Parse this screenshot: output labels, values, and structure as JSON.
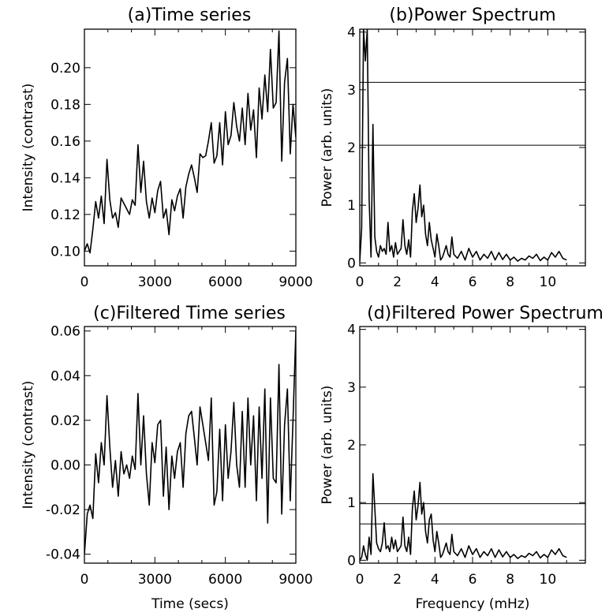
{
  "chart_data": [
    {
      "type": "line",
      "title": "(a)Time series",
      "xlabel": "",
      "ylabel": "Intensity (contrast)",
      "xlim": [
        0,
        9000
      ],
      "ylim": [
        0.092,
        0.221
      ],
      "xticks": [
        "0",
        "3000",
        "6000",
        "9000"
      ],
      "yticks": [
        "0.10",
        "0.12",
        "0.14",
        "0.16",
        "0.18",
        "0.20"
      ],
      "series": [
        {
          "x": [
            0,
            120,
            240,
            360,
            480,
            600,
            720,
            840,
            960,
            1080,
            1200,
            1320,
            1440,
            1560,
            1680,
            1800,
            1920,
            2040,
            2160,
            2280,
            2400,
            2520,
            2640,
            2760,
            2880,
            3000,
            3120,
            3240,
            3360,
            3480,
            3600,
            3720,
            3840,
            3960,
            4080,
            4200,
            4320,
            4440,
            4560,
            4680,
            4800,
            4920,
            5040,
            5160,
            5280,
            5400,
            5520,
            5640,
            5760,
            5880,
            6000,
            6120,
            6240,
            6360,
            6480,
            6600,
            6720,
            6840,
            6960,
            7080,
            7200,
            7320,
            7440,
            7560,
            7680,
            7800,
            7920,
            8040,
            8160,
            8280,
            8400,
            8520,
            8640,
            8760,
            8880,
            9000
          ],
          "y": [
            0.1,
            0.104,
            0.099,
            0.112,
            0.127,
            0.118,
            0.13,
            0.115,
            0.15,
            0.128,
            0.118,
            0.121,
            0.113,
            0.129,
            0.126,
            0.123,
            0.12,
            0.128,
            0.125,
            0.158,
            0.132,
            0.149,
            0.127,
            0.118,
            0.129,
            0.121,
            0.133,
            0.138,
            0.118,
            0.123,
            0.109,
            0.128,
            0.122,
            0.13,
            0.134,
            0.118,
            0.135,
            0.142,
            0.147,
            0.14,
            0.132,
            0.153,
            0.151,
            0.152,
            0.16,
            0.17,
            0.148,
            0.152,
            0.17,
            0.147,
            0.176,
            0.158,
            0.163,
            0.181,
            0.168,
            0.16,
            0.178,
            0.158,
            0.186,
            0.166,
            0.177,
            0.151,
            0.189,
            0.172,
            0.196,
            0.176,
            0.21,
            0.178,
            0.181,
            0.22,
            0.149,
            0.192,
            0.205,
            0.153,
            0.18,
            0.162
          ]
        }
      ]
    },
    {
      "type": "line",
      "title": "(b)Power Spectrum",
      "xlabel": "",
      "ylabel": "Power (arb. units)",
      "xlim": [
        0,
        12
      ],
      "ylim": [
        -0.05,
        4.05
      ],
      "xticks": [
        "0",
        "2",
        "4",
        "6",
        "8",
        "10"
      ],
      "yticks": [
        "0",
        "1",
        "2",
        "3",
        "4"
      ],
      "hlines": [
        3.13,
        2.04
      ],
      "series": [
        {
          "x": [
            0.0,
            0.1,
            0.2,
            0.3,
            0.4,
            0.5,
            0.6,
            0.7,
            0.8,
            0.9,
            1.0,
            1.1,
            1.2,
            1.3,
            1.4,
            1.5,
            1.6,
            1.7,
            1.8,
            1.9,
            2.0,
            2.1,
            2.2,
            2.3,
            2.4,
            2.5,
            2.6,
            2.7,
            2.8,
            2.9,
            3.0,
            3.1,
            3.2,
            3.3,
            3.4,
            3.5,
            3.6,
            3.7,
            3.8,
            3.9,
            4.0,
            4.1,
            4.2,
            4.3,
            4.4,
            4.5,
            4.6,
            4.7,
            4.8,
            4.9,
            5.0,
            5.2,
            5.4,
            5.6,
            5.8,
            6.0,
            6.2,
            6.4,
            6.6,
            6.8,
            7.0,
            7.2,
            7.4,
            7.6,
            7.8,
            8.0,
            8.2,
            8.4,
            8.6,
            8.8,
            9.0,
            9.2,
            9.4,
            9.6,
            9.8,
            10.0,
            10.2,
            10.4,
            10.6,
            10.8,
            11.0
          ],
          "y": [
            0.02,
            0.6,
            4.05,
            3.5,
            4.05,
            1.1,
            0.1,
            2.4,
            0.45,
            0.2,
            0.1,
            0.3,
            0.2,
            0.25,
            0.15,
            0.7,
            0.2,
            0.3,
            0.1,
            0.35,
            0.15,
            0.2,
            0.25,
            0.75,
            0.3,
            0.15,
            0.4,
            0.1,
            0.9,
            1.2,
            0.7,
            0.95,
            1.35,
            0.8,
            1.0,
            0.5,
            0.3,
            0.7,
            0.4,
            0.25,
            0.1,
            0.5,
            0.3,
            0.05,
            0.1,
            0.2,
            0.3,
            0.15,
            0.1,
            0.45,
            0.15,
            0.08,
            0.2,
            0.05,
            0.25,
            0.1,
            0.2,
            0.05,
            0.15,
            0.08,
            0.2,
            0.05,
            0.18,
            0.06,
            0.15,
            0.05,
            0.1,
            0.03,
            0.08,
            0.05,
            0.12,
            0.08,
            0.15,
            0.04,
            0.1,
            0.05,
            0.18,
            0.1,
            0.2,
            0.08,
            0.05
          ]
        }
      ]
    },
    {
      "type": "line",
      "title": "(c)Filtered Time series",
      "xlabel": "Time (secs)",
      "ylabel": "Intensity (contrast)",
      "xlim": [
        0,
        9000
      ],
      "ylim": [
        -0.044,
        0.062
      ],
      "xticks": [
        "0",
        "3000",
        "6000",
        "9000"
      ],
      "yticks": [
        "-0.04",
        "-0.02",
        "0.00",
        "0.02",
        "0.04",
        "0.06"
      ],
      "series": [
        {
          "x": [
            0,
            120,
            240,
            360,
            480,
            600,
            720,
            840,
            960,
            1080,
            1200,
            1320,
            1440,
            1560,
            1680,
            1800,
            1920,
            2040,
            2160,
            2280,
            2400,
            2520,
            2640,
            2760,
            2880,
            3000,
            3120,
            3240,
            3360,
            3480,
            3600,
            3720,
            3840,
            3960,
            4080,
            4200,
            4320,
            4440,
            4560,
            4680,
            4800,
            4920,
            5040,
            5160,
            5280,
            5400,
            5520,
            5640,
            5760,
            5880,
            6000,
            6120,
            6240,
            6360,
            6480,
            6600,
            6720,
            6840,
            6960,
            7080,
            7200,
            7320,
            7440,
            7560,
            7680,
            7800,
            7920,
            8040,
            8160,
            8280,
            8400,
            8520,
            8640,
            8760,
            8880,
            9000
          ],
          "y": [
            -0.04,
            -0.022,
            -0.018,
            -0.024,
            0.005,
            -0.008,
            0.01,
            0.0,
            0.031,
            0.008,
            -0.01,
            0.002,
            -0.014,
            0.006,
            -0.004,
            0.0,
            -0.006,
            0.004,
            -0.002,
            0.032,
            0.0,
            0.022,
            -0.004,
            -0.018,
            0.01,
            0.001,
            0.018,
            0.02,
            -0.014,
            0.008,
            -0.02,
            0.004,
            -0.006,
            0.006,
            0.01,
            -0.01,
            0.014,
            0.022,
            0.024,
            0.012,
            0.0,
            0.026,
            0.018,
            0.01,
            0.002,
            0.03,
            -0.018,
            -0.012,
            0.016,
            -0.016,
            0.018,
            -0.006,
            0.006,
            0.028,
            0.0,
            -0.01,
            0.024,
            -0.01,
            0.03,
            0.0,
            0.022,
            -0.016,
            0.026,
            -0.006,
            0.034,
            -0.026,
            0.03,
            -0.006,
            -0.008,
            0.045,
            -0.022,
            0.018,
            0.034,
            -0.016,
            0.02,
            0.06
          ]
        }
      ]
    },
    {
      "type": "line",
      "title": "(d)Filtered Power Spectrum",
      "xlabel": "Frequency (mHz)",
      "ylabel": "Power (arb. units)",
      "xlim": [
        0,
        12
      ],
      "ylim": [
        -0.05,
        4.05
      ],
      "xticks": [
        "0",
        "2",
        "4",
        "6",
        "8",
        "10"
      ],
      "yticks": [
        "0",
        "1",
        "2",
        "3",
        "4"
      ],
      "hlines": [
        0.98,
        0.63
      ],
      "series": [
        {
          "x": [
            0.0,
            0.1,
            0.2,
            0.3,
            0.4,
            0.5,
            0.6,
            0.7,
            0.8,
            0.9,
            1.0,
            1.1,
            1.2,
            1.3,
            1.4,
            1.5,
            1.6,
            1.7,
            1.8,
            1.9,
            2.0,
            2.1,
            2.2,
            2.3,
            2.4,
            2.5,
            2.6,
            2.7,
            2.8,
            2.9,
            3.0,
            3.1,
            3.2,
            3.3,
            3.4,
            3.5,
            3.6,
            3.7,
            3.8,
            3.9,
            4.0,
            4.1,
            4.2,
            4.3,
            4.4,
            4.5,
            4.6,
            4.7,
            4.8,
            4.9,
            5.0,
            5.2,
            5.4,
            5.6,
            5.8,
            6.0,
            6.2,
            6.4,
            6.6,
            6.8,
            7.0,
            7.2,
            7.4,
            7.6,
            7.8,
            8.0,
            8.2,
            8.4,
            8.6,
            8.8,
            9.0,
            9.2,
            9.4,
            9.6,
            9.8,
            10.0,
            10.2,
            10.4,
            10.6,
            10.8,
            11.0
          ],
          "y": [
            0.0,
            0.05,
            0.25,
            0.1,
            0.0,
            0.4,
            0.1,
            1.5,
            0.9,
            0.3,
            0.2,
            0.15,
            0.3,
            0.65,
            0.2,
            0.25,
            0.15,
            0.4,
            0.2,
            0.35,
            0.15,
            0.2,
            0.25,
            0.75,
            0.25,
            0.15,
            0.4,
            0.1,
            0.9,
            1.2,
            0.7,
            0.95,
            1.35,
            0.8,
            1.0,
            0.5,
            0.3,
            0.7,
            0.8,
            0.35,
            0.15,
            0.5,
            0.3,
            0.05,
            0.1,
            0.2,
            0.3,
            0.15,
            0.1,
            0.45,
            0.15,
            0.08,
            0.2,
            0.05,
            0.25,
            0.1,
            0.2,
            0.05,
            0.15,
            0.08,
            0.2,
            0.05,
            0.18,
            0.06,
            0.15,
            0.05,
            0.1,
            0.03,
            0.08,
            0.05,
            0.12,
            0.08,
            0.15,
            0.04,
            0.1,
            0.05,
            0.18,
            0.1,
            0.2,
            0.08,
            0.05
          ]
        }
      ]
    }
  ]
}
